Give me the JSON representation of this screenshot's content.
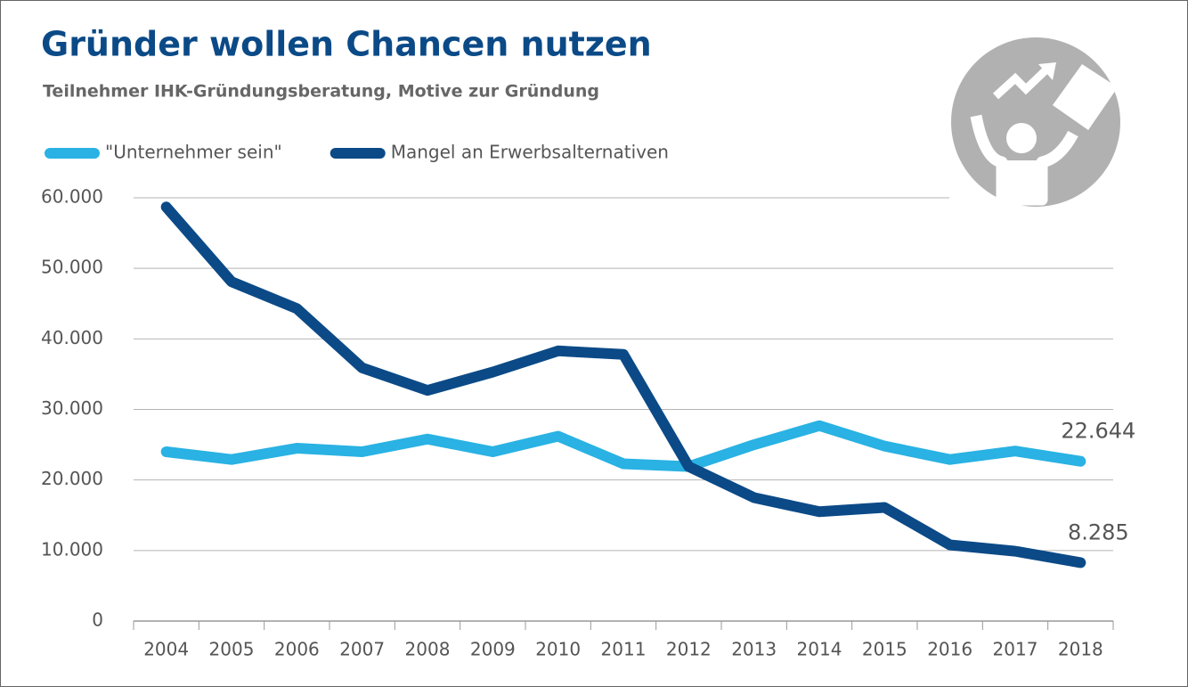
{
  "chart_data": {
    "type": "line",
    "title": "Gründer wollen Chancen nutzen",
    "subtitle": "Teilnehmer IHK-Gründungsberatung, Motive zur Gründung",
    "categories": [
      "2004",
      "2005",
      "2006",
      "2007",
      "2008",
      "2009",
      "2010",
      "2011",
      "2012",
      "2013",
      "2014",
      "2015",
      "2016",
      "2017",
      "2018"
    ],
    "series": [
      {
        "name": "\"Unternehmer sein\"",
        "color": "#29b2e3",
        "values": [
          24000,
          22900,
          24500,
          24000,
          25800,
          24000,
          26200,
          22300,
          21900,
          25000,
          27700,
          24800,
          22900,
          24100,
          22644
        ],
        "value_labels": [
          null,
          null,
          null,
          null,
          null,
          null,
          null,
          null,
          null,
          null,
          null,
          null,
          null,
          null,
          "22.644"
        ]
      },
      {
        "name": "Mangel an Erwerbsalternativen",
        "color": "#0b4a87",
        "values": [
          58700,
          48100,
          44300,
          35900,
          32700,
          35300,
          38300,
          37800,
          21900,
          17500,
          15500,
          16100,
          10800,
          9900,
          8285
        ],
        "value_labels": [
          null,
          null,
          null,
          null,
          null,
          null,
          null,
          null,
          null,
          null,
          null,
          null,
          null,
          null,
          "8.285"
        ]
      }
    ],
    "ylim": [
      0,
      60000
    ],
    "yticks": [
      0,
      {
        "value": 10000,
        "label": "10.000"
      },
      {
        "value": 20000,
        "label": "20.000"
      },
      {
        "value": 30000,
        "label": "30.000"
      },
      {
        "value": 40000,
        "label": "40.000"
      },
      {
        "value": 50000,
        "label": "50.000"
      },
      {
        "value": 60000,
        "label": "60.000"
      }
    ],
    "grid": true,
    "legend": "top-left"
  }
}
